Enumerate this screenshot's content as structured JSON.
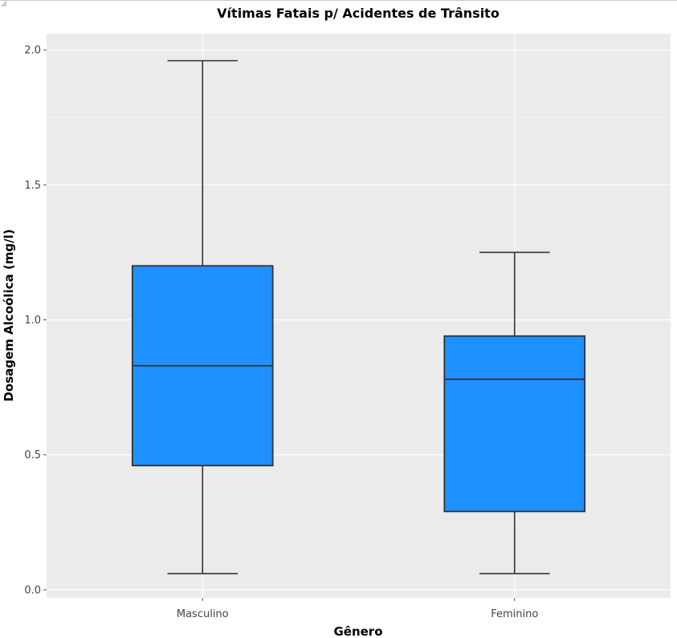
{
  "chart_data": {
    "type": "boxplot",
    "title": "Vítimas Fatais p/ Acidentes de Trânsito",
    "xlabel": "Gênero",
    "ylabel": "Dosagem Alcoólica (mg/l)",
    "categories": [
      "Masculino",
      "Feminino"
    ],
    "boxes": [
      {
        "category": "Masculino",
        "min": 0.06,
        "q1": 0.46,
        "median": 0.83,
        "q3": 1.2,
        "max": 1.96
      },
      {
        "category": "Feminino",
        "min": 0.06,
        "q1": 0.29,
        "median": 0.78,
        "q3": 0.94,
        "max": 1.25
      }
    ],
    "ylim": [
      -0.03,
      2.06
    ],
    "yticks": [
      0.0,
      0.5,
      1.0,
      1.5,
      2.0
    ],
    "ytick_labels": [
      "0.0",
      "0.5",
      "1.0",
      "1.5",
      "2.0"
    ],
    "grid": true,
    "colors": {
      "box_fill": "#1e90ff",
      "box_stroke": "#333333",
      "panel": "#ebebeb",
      "grid": "#ffffff"
    }
  }
}
